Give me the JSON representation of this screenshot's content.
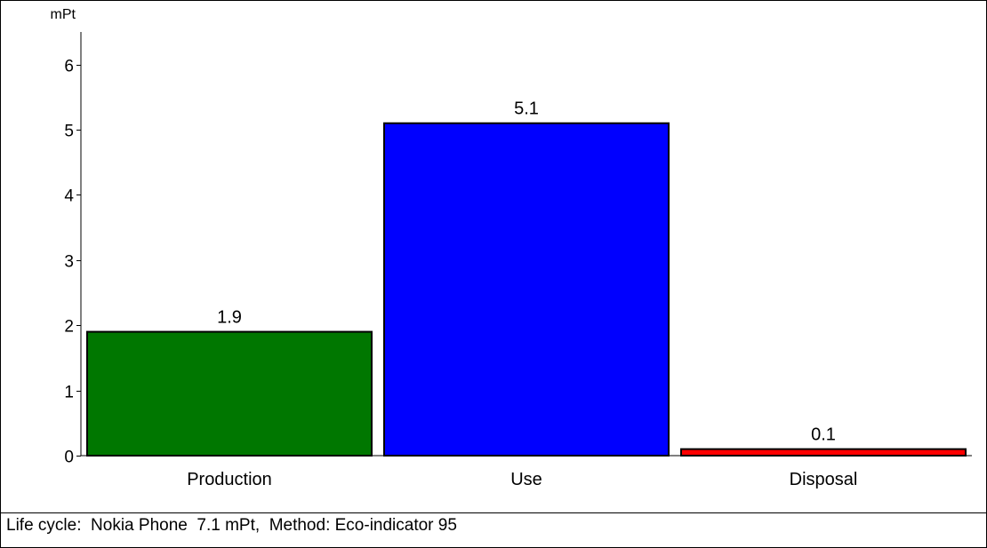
{
  "chart_data": {
    "type": "bar",
    "ylabel": "mPt",
    "categories": [
      "Production",
      "Use",
      "Disposal"
    ],
    "values": [
      1.9,
      5.1,
      0.1
    ],
    "data_labels": [
      "1.9",
      "5.1",
      "0.1"
    ],
    "ylim": [
      0,
      6.5
    ],
    "yticks": [
      0,
      1,
      2,
      3,
      4,
      5,
      6
    ],
    "colors": [
      "#007700",
      "#0000ff",
      "#ff0000"
    ],
    "grid": false,
    "legend": "none"
  },
  "status": {
    "text": "Life cycle:  Nokia Phone  7.1 mPt,  Method: Eco-indicator 95"
  }
}
